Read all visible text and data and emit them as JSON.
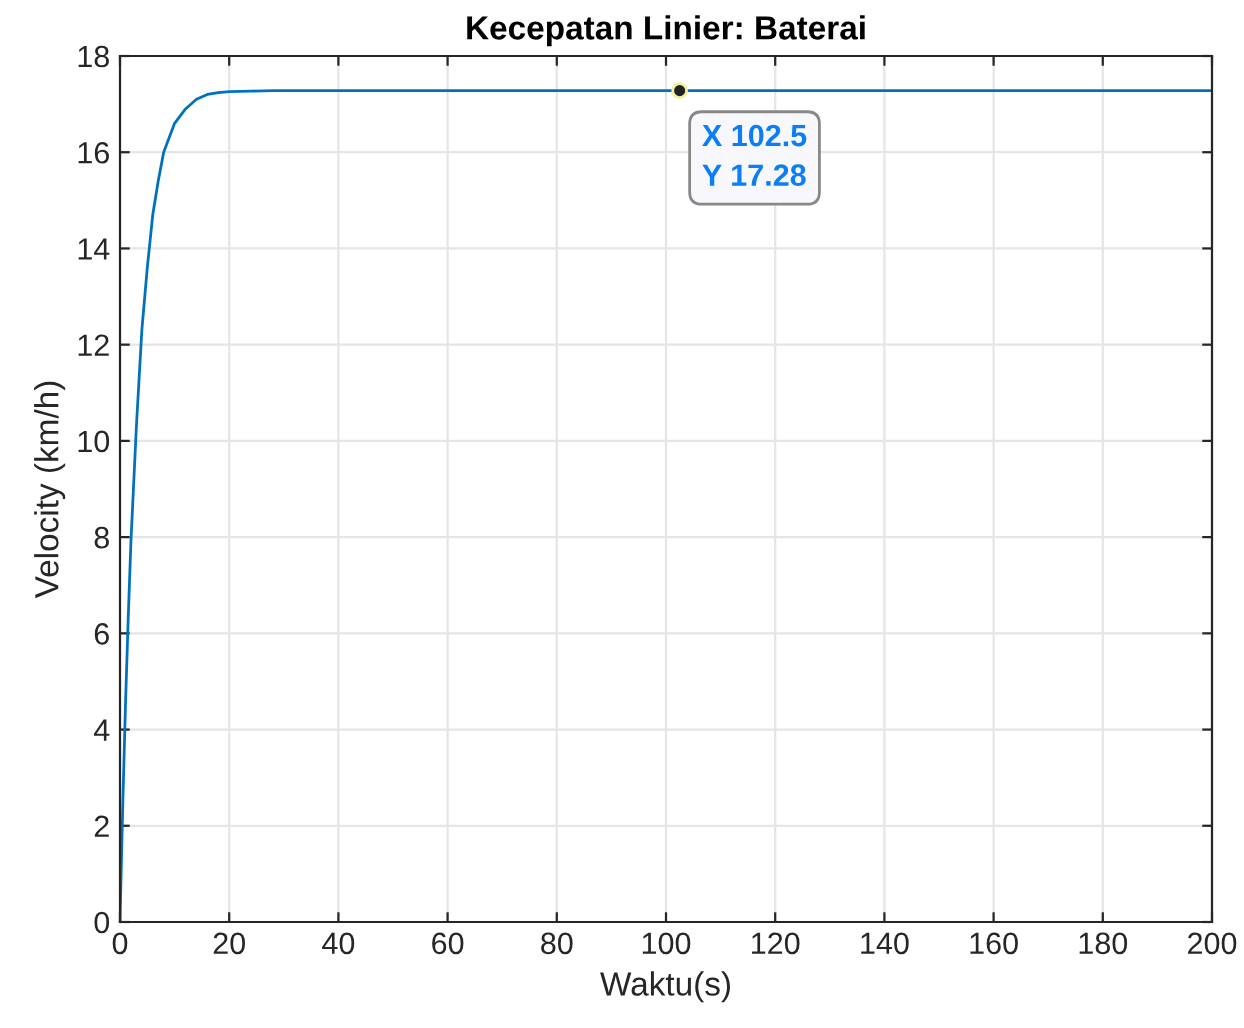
{
  "chart_data": {
    "type": "line",
    "title": "Kecepatan Linier: Baterai",
    "xlabel": "Waktu(s)",
    "ylabel": "Velocity (km/h)",
    "series": [
      {
        "color": "#0072bd",
        "x": [
          0,
          0.5,
          1,
          1.5,
          2,
          3,
          4,
          5,
          6,
          7,
          8,
          10,
          12,
          14,
          16,
          18,
          20,
          24,
          28,
          35,
          50,
          102.5,
          150,
          200
        ],
        "values": [
          0,
          2.4,
          4.5,
          6.3,
          7.9,
          10.3,
          12.3,
          13.6,
          14.7,
          15.4,
          16.0,
          16.6,
          16.9,
          17.1,
          17.2,
          17.24,
          17.26,
          17.27,
          17.28,
          17.28,
          17.28,
          17.28,
          17.28,
          17.28
        ]
      }
    ],
    "xlim": [
      0,
      200
    ],
    "ylim": [
      0,
      18
    ],
    "xticks": [
      0,
      20,
      40,
      60,
      80,
      100,
      120,
      140,
      160,
      180,
      200
    ],
    "yticks": [
      0,
      2,
      4,
      6,
      8,
      10,
      12,
      14,
      16,
      18
    ],
    "grid": true,
    "marker": "none",
    "line_style": "solid",
    "annotations": [
      {
        "text": "X 102.5\nY 17.28",
        "x": 102.5,
        "y": 17.28
      }
    ]
  }
}
